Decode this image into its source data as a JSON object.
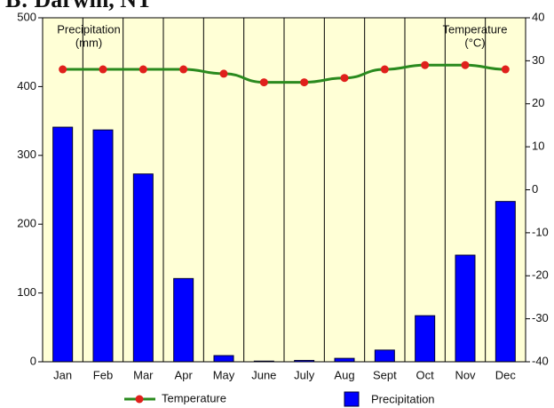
{
  "chart_data": {
    "type": "bar_line",
    "title": "B: Darwin, NT",
    "y_label": [
      "Precipitation",
      "(mm)"
    ],
    "y2_label": [
      "Temperature",
      "(°C)"
    ],
    "categories": [
      "Jan",
      "Feb",
      "Mar",
      "Apr",
      "May",
      "June",
      "July",
      "Aug",
      "Sept",
      "Oct",
      "Nov",
      "Dec"
    ],
    "ylim": [
      0,
      500
    ],
    "yticks": [
      0,
      100,
      200,
      300,
      400,
      500
    ],
    "y2lim": [
      -40,
      40
    ],
    "y2ticks": [
      -40,
      -30,
      -20,
      -10,
      0,
      10,
      20,
      30,
      40
    ],
    "background": "#ffffd6",
    "series": [
      {
        "name": "Temperature",
        "type": "line",
        "axis": "y2",
        "color": "#2a8a1e",
        "marker_color": "#e0201c",
        "values": [
          28,
          28,
          28,
          28,
          27,
          25,
          25,
          26,
          28,
          29,
          29,
          28
        ]
      },
      {
        "name": "Precipitation",
        "type": "bar",
        "axis": "y",
        "color": "#0000ff",
        "values": [
          341,
          337,
          273,
          121,
          9,
          1,
          2,
          5,
          17,
          67,
          155,
          233
        ]
      }
    ]
  }
}
